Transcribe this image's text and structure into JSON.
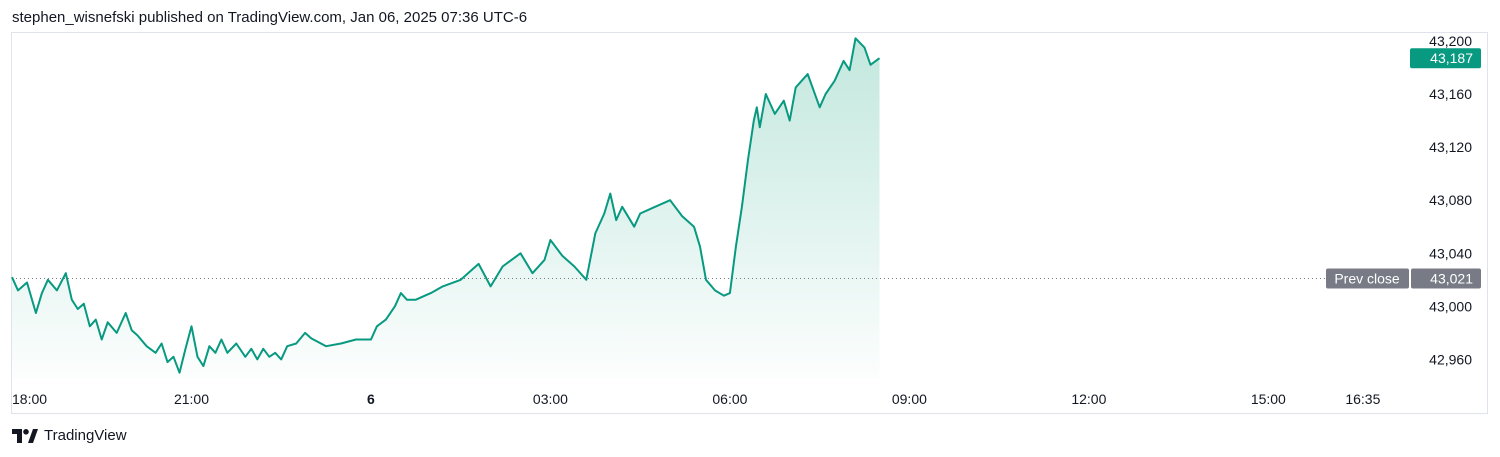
{
  "header": {
    "attribution": "stephen_wisnefski published on TradingView.com, Jan 06, 2025 07:36 UTC-6"
  },
  "footer": {
    "brand": "TradingView",
    "logo_icon": "tradingview-logo-icon"
  },
  "colors": {
    "line": "#089981",
    "fill_top": "#bfe6dc",
    "price_badge": "#089981",
    "prev_close_badge": "#787b86",
    "axis_text": "#131722",
    "border": "#e0e3eb"
  },
  "chart_data": {
    "type": "area",
    "title": "",
    "xlabel": "",
    "ylabel": "",
    "ylim": [
      42946,
      43206
    ],
    "y_ticks": [
      "43,200",
      "43,160",
      "43,120",
      "43,080",
      "43,040",
      "43,000",
      "42,960"
    ],
    "y_tick_values": [
      43200,
      43160,
      43120,
      43080,
      43040,
      43000,
      42960
    ],
    "x_ticks": [
      "18:00",
      "21:00",
      "6",
      "03:00",
      "06:00",
      "09:00",
      "12:00",
      "15:00",
      "16:35"
    ],
    "x_tick_hours": [
      0,
      3,
      6,
      9,
      12,
      15,
      18,
      21,
      22.58
    ],
    "x_axis_bold_tick": "6",
    "x_range_hours": [
      0,
      23.0
    ],
    "current_price": {
      "label": "43,187",
      "value": 43187
    },
    "prev_close": {
      "name": "Prev close",
      "label": "43,021",
      "value": 43021
    },
    "grid": false,
    "series": [
      {
        "hours": [
          0,
          0.1,
          0.25,
          0.4,
          0.5,
          0.6,
          0.75,
          0.9,
          1.0,
          1.1,
          1.2,
          1.3,
          1.4,
          1.5,
          1.6,
          1.75,
          1.9,
          2.0,
          2.1,
          2.25,
          2.4,
          2.5,
          2.6,
          2.7,
          2.8,
          2.9,
          3.0,
          3.1,
          3.2,
          3.3,
          3.4,
          3.5,
          3.6,
          3.75,
          3.9,
          4.0,
          4.1,
          4.2,
          4.3,
          4.4,
          4.5,
          4.6,
          4.75,
          4.9,
          5.0,
          5.25,
          5.5,
          5.75,
          6.0,
          6.1,
          6.25,
          6.4,
          6.5,
          6.6,
          6.75,
          6.9,
          7.0,
          7.2,
          7.5,
          7.8,
          8.0,
          8.2,
          8.5,
          8.7,
          8.9,
          9.0,
          9.2,
          9.4,
          9.6,
          9.75,
          9.9,
          10.0,
          10.1,
          10.2,
          10.4,
          10.5,
          10.75,
          11.0,
          11.2,
          11.4,
          11.5,
          11.6,
          11.75,
          11.9,
          12.0,
          12.1,
          12.2,
          12.3,
          12.4,
          12.45,
          12.5,
          12.6,
          12.75,
          12.9,
          13.0,
          13.1,
          13.3,
          13.5,
          13.6,
          13.75,
          13.9,
          14.0,
          14.1,
          14.25,
          14.35,
          14.5
        ],
        "values": [
          43022,
          43012,
          43018,
          42995,
          43010,
          43020,
          43012,
          43025,
          43005,
          42998,
          43002,
          42985,
          42990,
          42975,
          42988,
          42980,
          42995,
          42982,
          42978,
          42970,
          42965,
          42972,
          42958,
          42962,
          42950,
          42968,
          42985,
          42962,
          42955,
          42970,
          42965,
          42975,
          42965,
          42972,
          42962,
          42968,
          42960,
          42968,
          42962,
          42965,
          42960,
          42970,
          42972,
          42980,
          42976,
          42970,
          42972,
          42975,
          42975,
          42985,
          42990,
          43000,
          43010,
          43005,
          43005,
          43008,
          43010,
          43015,
          43020,
          43032,
          43015,
          43030,
          43040,
          43025,
          43035,
          43050,
          43038,
          43030,
          43020,
          43055,
          43070,
          43085,
          43065,
          43075,
          43060,
          43070,
          43075,
          43080,
          43068,
          43060,
          43045,
          43020,
          43012,
          43008,
          43010,
          43045,
          43075,
          43110,
          43140,
          43150,
          43135,
          43160,
          43145,
          43155,
          43140,
          43165,
          43175,
          43150,
          43160,
          43170,
          43185,
          43178,
          43202,
          43195,
          43182,
          43187
        ]
      }
    ]
  }
}
